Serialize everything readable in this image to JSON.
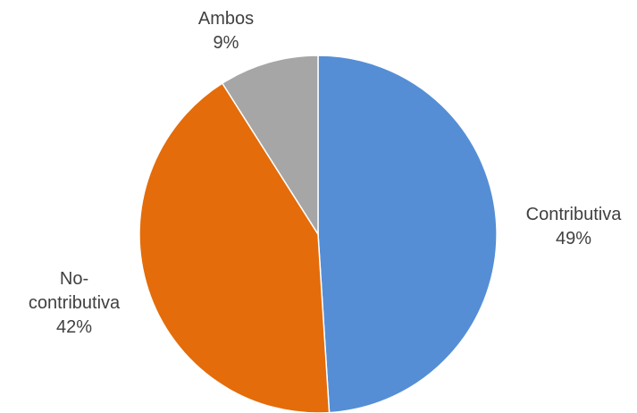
{
  "chart_data": {
    "type": "pie",
    "title": "",
    "slices": [
      {
        "label": "Contributiva",
        "label_lines": [
          "Contributiva"
        ],
        "percent_label": "49%",
        "value": 49,
        "color": "#558ed5"
      },
      {
        "label": "No-contributiva",
        "label_lines": [
          "No-",
          "contributiva"
        ],
        "percent_label": "42%",
        "value": 42,
        "color": "#e46c0a"
      },
      {
        "label": "Ambos",
        "label_lines": [
          "Ambos"
        ],
        "percent_label": "9%",
        "value": 9,
        "color": "#a6a6a6"
      }
    ],
    "legend": "none"
  }
}
